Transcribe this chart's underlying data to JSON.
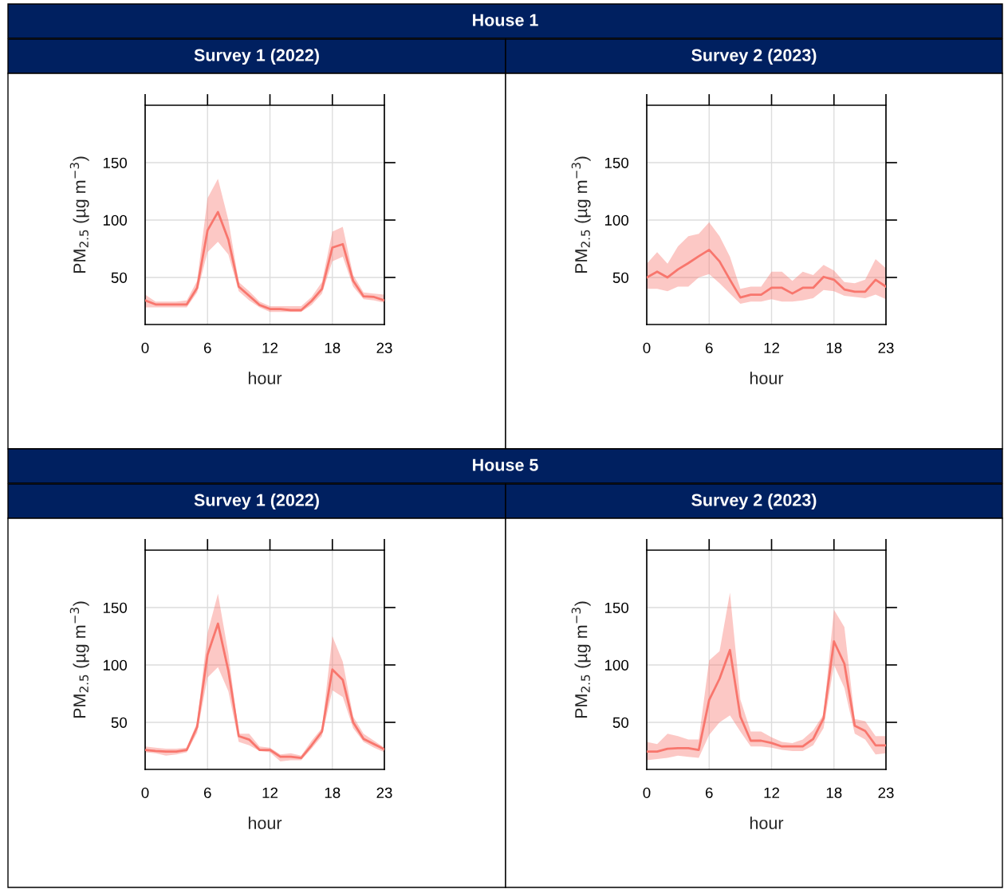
{
  "chart_data": [
    {
      "type": "line",
      "title": "Survey 1 (2022)",
      "annotations": [
        "House 1"
      ],
      "xlabel": "hour",
      "ylabel": "PM$_{2.5}$ (µg m$^{−3}$)",
      "x": [
        0,
        1,
        2,
        3,
        4,
        5,
        6,
        7,
        8,
        9,
        10,
        11,
        12,
        13,
        14,
        15,
        16,
        17,
        18,
        19,
        20,
        21,
        22,
        23
      ],
      "xlim": [
        0,
        23
      ],
      "xticks": [
        0,
        6,
        12,
        18,
        23
      ],
      "ylim": [
        9,
        200
      ],
      "yticks": [
        50,
        100,
        150
      ],
      "grid": true,
      "marker": "none",
      "line_style": "solid",
      "series": [
        {
          "color": "#f8766d",
          "values": [
            30,
            26.5,
            26.5,
            26.5,
            26.5,
            41,
            91,
            107,
            83,
            42,
            34,
            26,
            22.5,
            22.5,
            21.5,
            21.5,
            29.5,
            40,
            76,
            79,
            47,
            33.5,
            33,
            30
          ],
          "lower": [
            24,
            24,
            24,
            24,
            24,
            37,
            72,
            81,
            70,
            38,
            30,
            24,
            20,
            20,
            20,
            20,
            26,
            36,
            64,
            68,
            42,
            31,
            30,
            28
          ],
          "upper": [
            35,
            29,
            29,
            29,
            30,
            47,
            119,
            136,
            100,
            46,
            38,
            29,
            25,
            25,
            25,
            25,
            33,
            46,
            90,
            94,
            52,
            37,
            36,
            35
          ]
        }
      ]
    },
    {
      "type": "line",
      "title": "Survey 2 (2023)",
      "xlabel": "hour",
      "ylabel": "PM$_{2.5}$ (µg m$^{−3}$)",
      "x": [
        0,
        1,
        2,
        3,
        4,
        5,
        6,
        7,
        8,
        9,
        10,
        11,
        12,
        13,
        14,
        15,
        16,
        17,
        18,
        19,
        20,
        21,
        22,
        23
      ],
      "xlim": [
        0,
        23
      ],
      "xticks": [
        0,
        6,
        12,
        18,
        23
      ],
      "ylim": [
        9,
        200
      ],
      "yticks": [
        50,
        100,
        150
      ],
      "grid": true,
      "marker": "none",
      "line_style": "solid",
      "series": [
        {
          "color": "#f8766d",
          "values": [
            50,
            55,
            50,
            57,
            62.5,
            68.5,
            74,
            64,
            48,
            32.5,
            35,
            35,
            41,
            41,
            36,
            41,
            41,
            50.5,
            48,
            39.5,
            37.5,
            37.5,
            48,
            42
          ],
          "lower": [
            40,
            40,
            38,
            42,
            42,
            50,
            53,
            45,
            36,
            27,
            29,
            29,
            31,
            29,
            29,
            30,
            32,
            39,
            38,
            34,
            33,
            32,
            35,
            31
          ],
          "upper": [
            62,
            72,
            62,
            77,
            86,
            88,
            98,
            86,
            68,
            40,
            42,
            42,
            55,
            55,
            47,
            55,
            52,
            61,
            56,
            46,
            45,
            48,
            66,
            58
          ]
        }
      ]
    },
    {
      "type": "line",
      "title": "Survey 1 (2022)",
      "annotations": [
        "House 5"
      ],
      "xlabel": "hour",
      "ylabel": "PM$_{2.5}$ (µg m$^{−3}$)",
      "x": [
        0,
        1,
        2,
        3,
        4,
        5,
        6,
        7,
        8,
        9,
        10,
        11,
        12,
        13,
        14,
        15,
        16,
        17,
        18,
        19,
        20,
        21,
        22,
        23
      ],
      "xlim": [
        0,
        23
      ],
      "xticks": [
        0,
        6,
        12,
        18,
        23
      ],
      "ylim": [
        9,
        200
      ],
      "yticks": [
        50,
        100,
        150
      ],
      "grid": true,
      "marker": "none",
      "line_style": "solid",
      "series": [
        {
          "color": "#f8766d",
          "values": [
            26,
            25,
            24.5,
            24.5,
            26,
            46,
            109,
            136,
            95,
            38,
            35,
            26,
            26,
            20,
            20,
            19,
            30,
            42,
            96,
            87,
            50,
            35.5,
            31,
            26.5
          ],
          "lower": [
            24,
            23,
            21,
            22,
            24,
            41,
            89,
            98,
            77,
            33,
            30,
            25,
            24,
            16,
            17,
            17,
            27,
            38,
            78,
            72,
            45,
            33,
            28,
            24
          ],
          "upper": [
            29,
            28,
            27,
            27,
            28,
            50,
            128,
            162,
            110,
            40,
            40,
            29,
            28,
            22,
            23,
            21,
            34,
            45,
            125,
            103,
            55,
            40,
            34,
            28
          ]
        }
      ]
    },
    {
      "type": "line",
      "title": "Survey 2 (2023)",
      "xlabel": "hour",
      "ylabel": "PM$_{2.5}$ (µg m$^{−3}$)",
      "x": [
        0,
        1,
        2,
        3,
        4,
        5,
        6,
        7,
        8,
        9,
        10,
        11,
        12,
        13,
        14,
        15,
        16,
        17,
        18,
        19,
        20,
        21,
        22,
        23
      ],
      "xlim": [
        0,
        23
      ],
      "xticks": [
        0,
        6,
        12,
        18,
        23
      ],
      "ylim": [
        9,
        200
      ],
      "yticks": [
        50,
        100,
        150
      ],
      "grid": true,
      "marker": "none",
      "line_style": "solid",
      "series": [
        {
          "color": "#f8766d",
          "values": [
            24.5,
            24.5,
            27,
            27.5,
            27.5,
            26,
            69.5,
            88,
            113,
            55,
            34,
            34,
            32,
            29,
            29,
            29,
            35.5,
            53.5,
            120.5,
            101,
            47,
            42.5,
            30,
            30
          ],
          "lower": [
            17,
            18,
            19,
            21,
            20,
            19,
            39,
            50,
            56,
            42,
            29,
            29,
            28,
            26,
            25,
            25,
            30,
            45,
            100,
            80,
            40,
            35,
            22,
            23
          ],
          "upper": [
            33,
            31,
            40,
            38,
            35,
            35,
            104,
            112,
            163,
            70,
            42,
            42,
            37,
            33,
            32,
            35,
            43,
            57,
            148,
            133,
            53,
            51,
            38,
            38
          ]
        }
      ]
    }
  ]
}
